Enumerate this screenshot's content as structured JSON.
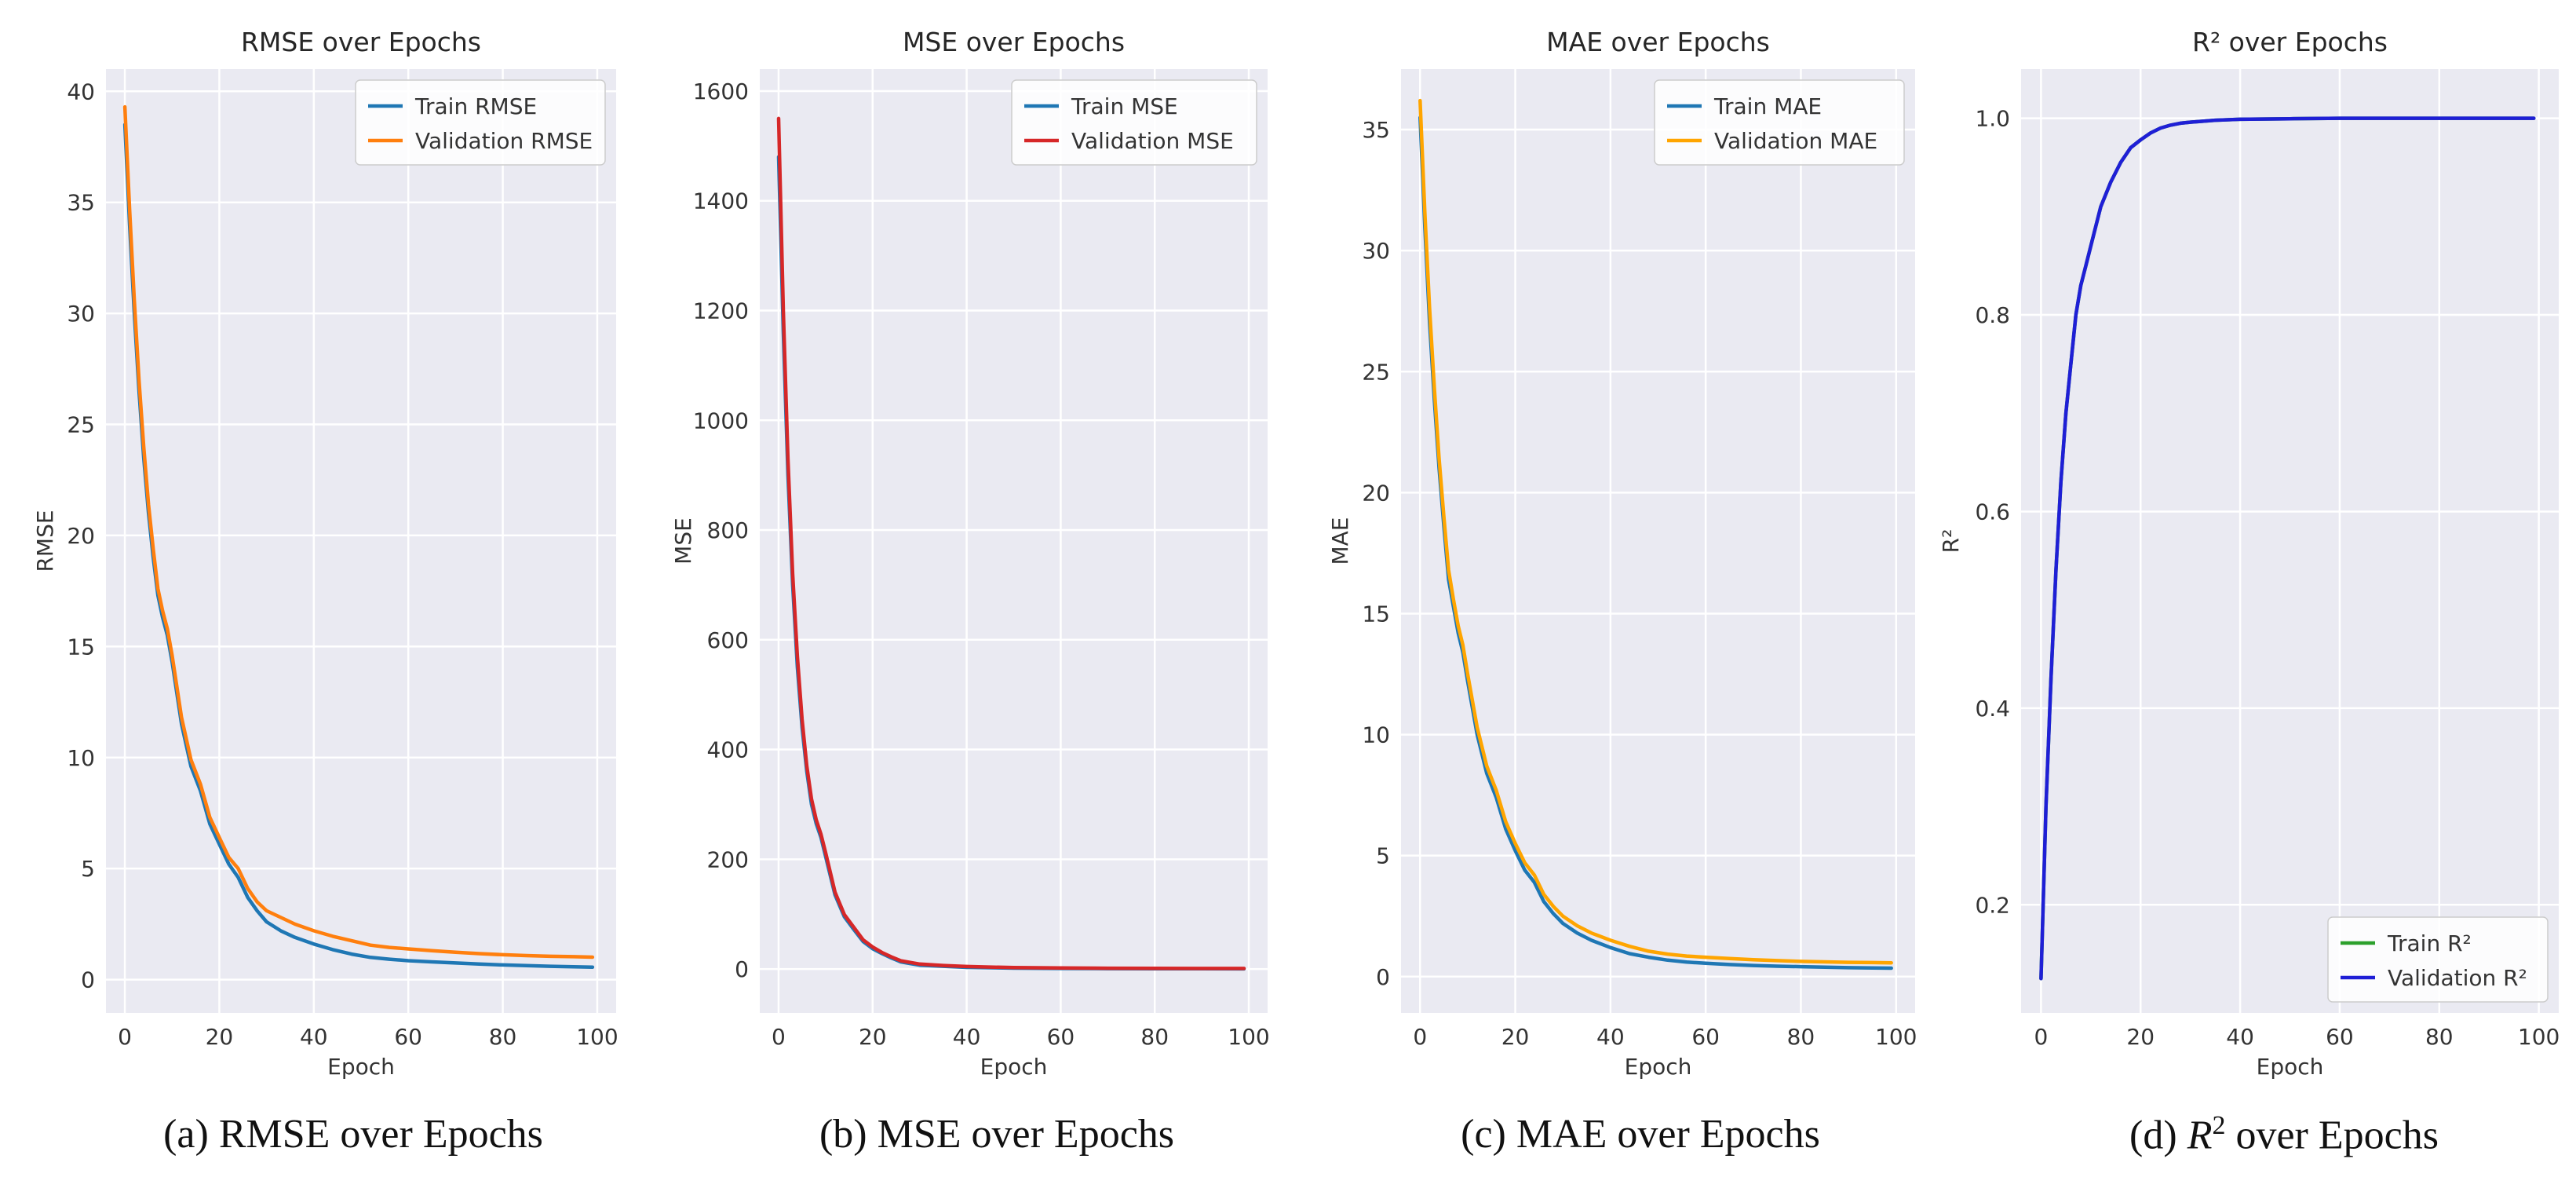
{
  "chart_data": [
    {
      "type": "line",
      "title": "RMSE over Epochs",
      "xlabel": "Epoch",
      "ylabel": "RMSE",
      "xlim": [
        -4,
        104
      ],
      "ylim": [
        -1.5,
        41
      ],
      "xticks": [
        0,
        20,
        40,
        60,
        80,
        100
      ],
      "yticks": [
        0,
        5,
        10,
        15,
        20,
        25,
        30,
        35,
        40
      ],
      "tick_labels_x": [
        "0",
        "20",
        "40",
        "60",
        "80",
        "100"
      ],
      "tick_labels_y": [
        "0",
        "5",
        "10",
        "15",
        "20",
        "25",
        "30",
        "35",
        "40"
      ],
      "legend_position": "top-right",
      "grid": true,
      "series": [
        {
          "name": "Train RMSE",
          "color": "#1f77b4",
          "x": [
            0,
            1,
            2,
            3,
            4,
            5,
            6,
            7,
            8,
            9,
            10,
            12,
            14,
            16,
            18,
            20,
            22,
            24,
            26,
            28,
            30,
            33,
            36,
            40,
            44,
            48,
            52,
            56,
            60,
            65,
            70,
            75,
            80,
            85,
            90,
            95,
            99
          ],
          "y": [
            38.5,
            34.0,
            30.0,
            26.5,
            23.5,
            21.0,
            19.0,
            17.3,
            16.3,
            15.5,
            14.3,
            11.5,
            9.6,
            8.5,
            7.0,
            6.1,
            5.2,
            4.6,
            3.7,
            3.1,
            2.6,
            2.2,
            1.9,
            1.6,
            1.35,
            1.15,
            1.0,
            0.92,
            0.85,
            0.8,
            0.75,
            0.7,
            0.66,
            0.63,
            0.6,
            0.58,
            0.56
          ]
        },
        {
          "name": "Validation RMSE",
          "color": "#ff7f0e",
          "x": [
            0,
            1,
            2,
            3,
            4,
            5,
            6,
            7,
            8,
            9,
            10,
            12,
            14,
            16,
            18,
            20,
            22,
            24,
            26,
            28,
            30,
            33,
            36,
            40,
            44,
            48,
            52,
            56,
            60,
            65,
            70,
            75,
            80,
            85,
            90,
            95,
            99
          ],
          "y": [
            39.3,
            34.7,
            30.6,
            27.0,
            24.0,
            21.4,
            19.4,
            17.6,
            16.6,
            15.8,
            14.6,
            11.8,
            9.9,
            8.8,
            7.3,
            6.4,
            5.5,
            5.0,
            4.1,
            3.5,
            3.1,
            2.8,
            2.5,
            2.2,
            1.95,
            1.75,
            1.55,
            1.45,
            1.38,
            1.3,
            1.23,
            1.17,
            1.12,
            1.08,
            1.05,
            1.03,
            1.01
          ]
        }
      ]
    },
    {
      "type": "line",
      "title": "MSE over Epochs",
      "xlabel": "Epoch",
      "ylabel": "MSE",
      "xlim": [
        -4,
        104
      ],
      "ylim": [
        -80,
        1640
      ],
      "xticks": [
        0,
        20,
        40,
        60,
        80,
        100
      ],
      "yticks": [
        0,
        200,
        400,
        600,
        800,
        1000,
        1200,
        1400,
        1600
      ],
      "tick_labels_x": [
        "0",
        "20",
        "40",
        "60",
        "80",
        "100"
      ],
      "tick_labels_y": [
        "0",
        "200",
        "400",
        "600",
        "800",
        "1000",
        "1200",
        "1400",
        "1600"
      ],
      "legend_position": "top-right",
      "grid": true,
      "series": [
        {
          "name": "Train MSE",
          "color": "#1f77b4",
          "x": [
            0,
            1,
            2,
            3,
            4,
            5,
            6,
            7,
            8,
            9,
            10,
            12,
            14,
            16,
            18,
            20,
            22,
            24,
            26,
            28,
            30,
            35,
            40,
            50,
            60,
            70,
            80,
            90,
            99
          ],
          "y": [
            1480,
            1160,
            900,
            700,
            550,
            440,
            360,
            300,
            265,
            240,
            205,
            135,
            95,
            72,
            50,
            37,
            28,
            20,
            13,
            10,
            7,
            5,
            3,
            1.5,
            1,
            0.7,
            0.5,
            0.4,
            0.3
          ]
        },
        {
          "name": "Validation MSE",
          "color": "#d62728",
          "x": [
            0,
            1,
            2,
            3,
            4,
            5,
            6,
            7,
            8,
            9,
            10,
            12,
            14,
            16,
            18,
            20,
            22,
            24,
            26,
            28,
            30,
            35,
            40,
            50,
            60,
            70,
            80,
            90,
            99
          ],
          "y": [
            1550,
            1200,
            930,
            720,
            570,
            455,
            370,
            310,
            272,
            246,
            212,
            140,
            99,
            76,
            53,
            40,
            30,
            22,
            15,
            12,
            9,
            6.5,
            4.5,
            2.5,
            1.8,
            1.4,
            1.2,
            1.0,
            1.0
          ]
        }
      ]
    },
    {
      "type": "line",
      "title": "MAE over Epochs",
      "xlabel": "Epoch",
      "ylabel": "MAE",
      "xlim": [
        -4,
        104
      ],
      "ylim": [
        -1.5,
        37.5
      ],
      "xticks": [
        0,
        20,
        40,
        60,
        80,
        100
      ],
      "yticks": [
        0,
        5,
        10,
        15,
        20,
        25,
        30,
        35
      ],
      "tick_labels_x": [
        "0",
        "20",
        "40",
        "60",
        "80",
        "100"
      ],
      "tick_labels_y": [
        "0",
        "5",
        "10",
        "15",
        "20",
        "25",
        "30",
        "35"
      ],
      "legend_position": "top-right",
      "grid": true,
      "series": [
        {
          "name": "Train MAE",
          "color": "#1f77b4",
          "x": [
            0,
            1,
            2,
            3,
            4,
            5,
            6,
            7,
            8,
            9,
            10,
            12,
            14,
            16,
            18,
            20,
            22,
            24,
            26,
            28,
            30,
            33,
            36,
            40,
            44,
            48,
            52,
            56,
            60,
            65,
            70,
            75,
            80,
            85,
            90,
            95,
            99
          ],
          "y": [
            35.5,
            31.0,
            27.0,
            23.8,
            21.0,
            18.6,
            16.4,
            15.3,
            14.2,
            13.4,
            12.2,
            10.0,
            8.4,
            7.4,
            6.1,
            5.2,
            4.4,
            3.9,
            3.1,
            2.6,
            2.2,
            1.8,
            1.5,
            1.2,
            0.95,
            0.8,
            0.68,
            0.6,
            0.55,
            0.5,
            0.46,
            0.43,
            0.41,
            0.39,
            0.37,
            0.36,
            0.35
          ]
        },
        {
          "name": "Validation MAE",
          "color": "#ffa500",
          "x": [
            0,
            1,
            2,
            3,
            4,
            5,
            6,
            7,
            8,
            9,
            10,
            12,
            14,
            16,
            18,
            20,
            22,
            24,
            26,
            28,
            30,
            33,
            36,
            40,
            44,
            48,
            52,
            56,
            60,
            65,
            70,
            75,
            80,
            85,
            90,
            95,
            99
          ],
          "y": [
            36.2,
            31.6,
            27.6,
            24.3,
            21.4,
            19.0,
            16.8,
            15.6,
            14.5,
            13.7,
            12.5,
            10.3,
            8.7,
            7.7,
            6.4,
            5.5,
            4.7,
            4.2,
            3.4,
            2.9,
            2.5,
            2.1,
            1.8,
            1.5,
            1.25,
            1.05,
            0.93,
            0.85,
            0.8,
            0.75,
            0.7,
            0.66,
            0.63,
            0.61,
            0.59,
            0.58,
            0.57
          ]
        }
      ]
    },
    {
      "type": "line",
      "title": "R² over Epochs",
      "xlabel": "Epoch",
      "ylabel": "R²",
      "xlim": [
        -4,
        104
      ],
      "ylim": [
        0.09,
        1.05
      ],
      "xticks": [
        0,
        20,
        40,
        60,
        80,
        100
      ],
      "yticks": [
        0.2,
        0.4,
        0.6,
        0.8,
        1.0
      ],
      "tick_labels_x": [
        "0",
        "20",
        "40",
        "60",
        "80",
        "100"
      ],
      "tick_labels_y": [
        "0.2",
        "0.4",
        "0.6",
        "0.8",
        "1.0"
      ],
      "legend_position": "bottom-right",
      "grid": true,
      "series": [
        {
          "name": "Train R²",
          "color": "#2ca02c",
          "x": [
            0,
            1,
            2,
            3,
            4,
            5,
            6,
            7,
            8,
            9,
            10,
            12,
            14,
            16,
            18,
            20,
            22,
            24,
            26,
            28,
            30,
            35,
            40,
            50,
            60,
            70,
            80,
            90,
            99
          ],
          "y": [
            0.125,
            0.3,
            0.43,
            0.54,
            0.63,
            0.7,
            0.75,
            0.8,
            0.83,
            0.85,
            0.87,
            0.91,
            0.935,
            0.955,
            0.97,
            0.978,
            0.985,
            0.99,
            0.993,
            0.995,
            0.996,
            0.998,
            0.999,
            0.9995,
            1.0,
            1.0,
            1.0,
            1.0,
            1.0
          ]
        },
        {
          "name": "Validation R²",
          "color": "#1f1fd6",
          "x": [
            0,
            1,
            2,
            3,
            4,
            5,
            6,
            7,
            8,
            9,
            10,
            12,
            14,
            16,
            18,
            20,
            22,
            24,
            26,
            28,
            30,
            35,
            40,
            50,
            60,
            70,
            80,
            90,
            99
          ],
          "y": [
            0.125,
            0.3,
            0.43,
            0.54,
            0.63,
            0.7,
            0.75,
            0.8,
            0.83,
            0.85,
            0.87,
            0.91,
            0.935,
            0.955,
            0.97,
            0.978,
            0.985,
            0.99,
            0.993,
            0.995,
            0.996,
            0.998,
            0.999,
            0.9995,
            1.0,
            1.0,
            1.0,
            1.0,
            1.0
          ]
        }
      ]
    }
  ],
  "captions": [
    {
      "prefix": "(a) ",
      "main": "RMSE over Epochs"
    },
    {
      "prefix": "(b) ",
      "main": "MSE over Epochs"
    },
    {
      "prefix": "(c) ",
      "main": "MAE over Epochs"
    },
    {
      "prefix": "(d) ",
      "symbol": "R",
      "sup": "2",
      "main": " over Epochs"
    }
  ]
}
